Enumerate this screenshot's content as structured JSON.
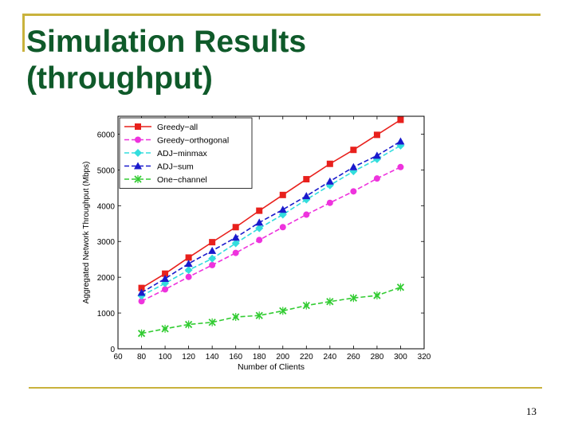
{
  "slide": {
    "title_line1": "Simulation Results",
    "title_line2": "(throughput)",
    "page_number": "13"
  },
  "colors": {
    "title": "#0f5a2a",
    "rule": "#c9b23c"
  },
  "chart_data": {
    "type": "line",
    "title": "",
    "xlabel": "Number of Clients",
    "ylabel": "Aggregated Network Throughput (Mbps)",
    "xlim": [
      60,
      320
    ],
    "ylim": [
      0,
      6500
    ],
    "xticks": [
      60,
      80,
      100,
      120,
      140,
      160,
      180,
      200,
      220,
      240,
      260,
      280,
      300,
      320
    ],
    "yticks": [
      0,
      1000,
      2000,
      3000,
      4000,
      5000,
      6000
    ],
    "grid": false,
    "legend_position": "top-left",
    "x": [
      80,
      100,
      120,
      140,
      160,
      180,
      200,
      220,
      240,
      260,
      280,
      300
    ],
    "series": [
      {
        "name": "Greedy−all",
        "color": "#e8201c",
        "dash": "solid",
        "marker": "square",
        "values": [
          1700,
          2100,
          2550,
          2980,
          3400,
          3860,
          4300,
          4740,
          5170,
          5560,
          5980,
          6400
        ]
      },
      {
        "name": "Greedy−orthogonal",
        "color": "#ee33dd",
        "dash": "dashed",
        "marker": "circle",
        "values": [
          1330,
          1660,
          2010,
          2340,
          2680,
          3040,
          3400,
          3750,
          4080,
          4400,
          4760,
          5080
        ]
      },
      {
        "name": "ADJ−minmax",
        "color": "#33dddd",
        "dash": "dashed",
        "marker": "diamond",
        "values": [
          1480,
          1830,
          2200,
          2520,
          2950,
          3370,
          3750,
          4170,
          4570,
          4960,
          5300,
          5680
        ]
      },
      {
        "name": "ADJ−sum",
        "color": "#1a1acc",
        "dash": "dashed",
        "marker": "triangle",
        "values": [
          1570,
          1960,
          2380,
          2740,
          3110,
          3530,
          3890,
          4270,
          4680,
          5080,
          5400,
          5800
        ]
      },
      {
        "name": "One−channel",
        "color": "#33cc33",
        "dash": "dashed",
        "marker": "x",
        "values": [
          430,
          560,
          680,
          740,
          890,
          930,
          1060,
          1210,
          1320,
          1420,
          1490,
          1720
        ]
      }
    ]
  }
}
